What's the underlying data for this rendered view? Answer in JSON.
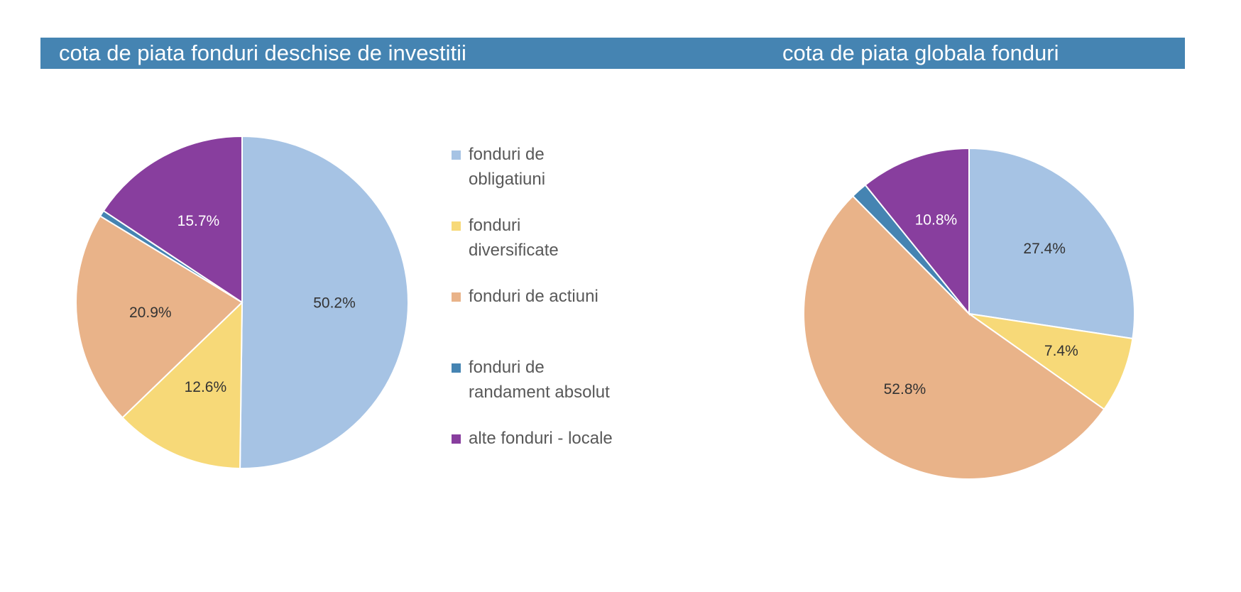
{
  "chart_data": [
    {
      "type": "pie",
      "title": "cota de piata fonduri deschise de investitii",
      "categories": [
        "fonduri de obligatiuni",
        "fonduri diversificate",
        "fonduri de actiuni",
        "fonduri de randament absolut",
        "alte fonduri - locale"
      ],
      "values": [
        50.2,
        12.6,
        20.9,
        0.6,
        15.7
      ],
      "labels": [
        "50.2%",
        "12.6%",
        "20.9%",
        "",
        "15.7%"
      ],
      "colors": [
        "#a6c3e4",
        "#f7d978",
        "#e9b389",
        "#4584b2",
        "#883e9e"
      ],
      "label_colors": [
        "#333333",
        "#333333",
        "#333333",
        "#333333",
        "#ffffff"
      ],
      "legend_position": "right"
    },
    {
      "type": "pie",
      "title": "cota de piata globala fonduri",
      "categories": [
        "fonduri de obligatiuni",
        "fonduri diversificate",
        "fonduri de actiuni",
        "fonduri de randament absolut",
        "alte fonduri - locale"
      ],
      "values": [
        27.4,
        7.4,
        52.8,
        1.6,
        10.8
      ],
      "labels": [
        "27.4%",
        "7.4%",
        "52.8%",
        "",
        "10.8%"
      ],
      "colors": [
        "#a6c3e4",
        "#f7d978",
        "#e9b389",
        "#4584b2",
        "#883e9e"
      ],
      "label_colors": [
        "#333333",
        "#333333",
        "#333333",
        "#333333",
        "#ffffff"
      ]
    }
  ],
  "legend": {
    "items": [
      {
        "label_line1": "fonduri de",
        "label_line2": "obligatiuni",
        "color": "#a6c3e4"
      },
      {
        "label_line1": "fonduri",
        "label_line2": "diversificate",
        "color": "#f7d978"
      },
      {
        "label_line1": "fonduri de actiuni",
        "label_line2": "",
        "color": "#e9b389"
      },
      {
        "label_line1": "fonduri de",
        "label_line2": "randament absolut",
        "color": "#4584b2"
      },
      {
        "label_line1": "alte fonduri - locale",
        "label_line2": "",
        "color": "#883e9e"
      }
    ]
  }
}
